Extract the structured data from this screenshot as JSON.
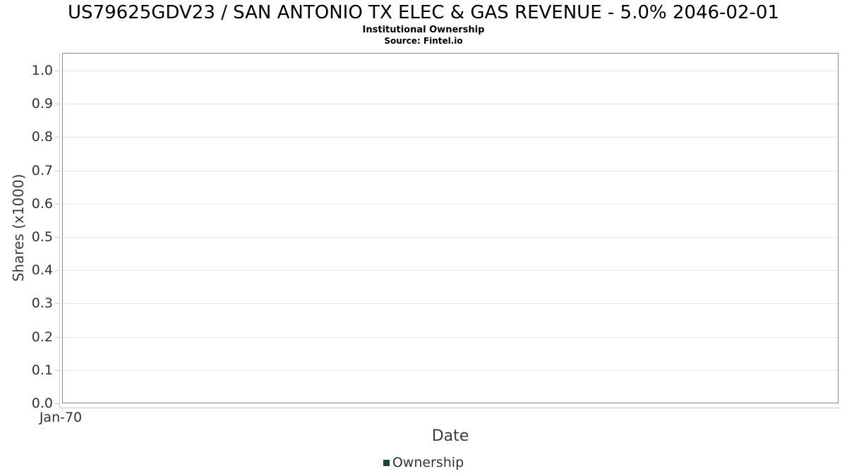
{
  "chart_data": {
    "type": "line",
    "title": "US79625GDV23 / SAN ANTONIO TX ELEC & GAS REVENUE - 5.0% 2046-02-01",
    "subtitle": "Institutional Ownership",
    "source": "Source: Fintel.io",
    "xlabel": "Date",
    "ylabel": "Shares (x1000)",
    "x_tick_labels": [
      "Jan-70"
    ],
    "y_tick_values": [
      0,
      0.1,
      0.2,
      0.3,
      0.4,
      0.5,
      0.6,
      0.7,
      0.8,
      0.9,
      1.0
    ],
    "y_tick_labels": [
      "0.0",
      "0.1",
      "0.2",
      "0.3",
      "0.4",
      "0.5",
      "0.6",
      "0.7",
      "0.8",
      "0.9",
      "1.0"
    ],
    "ylim": [
      0,
      1.053
    ],
    "xlim_labels": [
      "Jan-70"
    ],
    "grid": "horizontal-only",
    "legend_position": "bottom-center",
    "legend": [
      {
        "label": "Ownership",
        "color": "#1d4a28"
      }
    ],
    "series": [
      {
        "name": "Ownership",
        "points": []
      }
    ]
  },
  "colors": {
    "background": "#ffffff",
    "plot_border": "#898989",
    "gridline": "#e6e6e6",
    "axis_line": "#cccccc",
    "tick": "#cccccc",
    "tick_label": "#333333",
    "axis_title": "#3c3c3c",
    "title_text": "#000000",
    "legend_text": "#333333"
  }
}
